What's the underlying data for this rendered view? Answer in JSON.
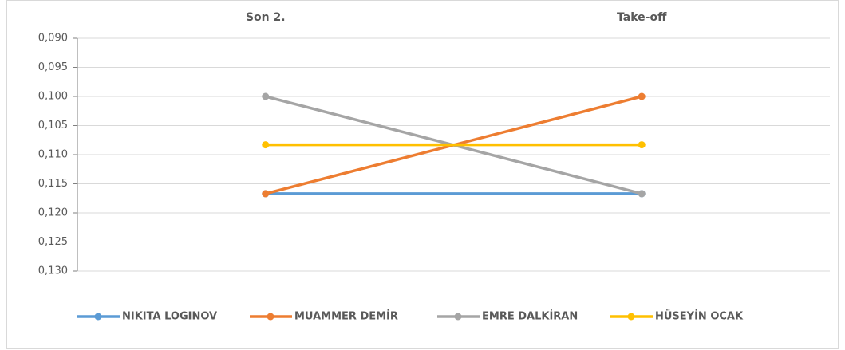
{
  "chart_data": {
    "type": "line",
    "categories": [
      "Son 2.",
      "Take-off"
    ],
    "series": [
      {
        "name": "NIKITA LOGINOV",
        "color": "#5b9bd5",
        "values": [
          0.1167,
          0.1167
        ]
      },
      {
        "name": "MUAMMER DEMİR",
        "color": "#ed7d31",
        "values": [
          0.1167,
          0.1
        ]
      },
      {
        "name": "EMRE DALKİRAN",
        "color": "#a5a5a5",
        "values": [
          0.1,
          0.1167
        ]
      },
      {
        "name": "HÜSEYİN OCAK",
        "color": "#ffc000",
        "values": [
          0.1083,
          0.1083
        ]
      }
    ],
    "ylim": [
      0.09,
      0.13
    ],
    "yreverse": true,
    "yticks": [
      {
        "value": 0.09,
        "label": "0,090"
      },
      {
        "value": 0.095,
        "label": "0,095"
      },
      {
        "value": 0.1,
        "label": "0,100"
      },
      {
        "value": 0.105,
        "label": "0,105"
      },
      {
        "value": 0.11,
        "label": "0,110"
      },
      {
        "value": 0.115,
        "label": "0,115"
      },
      {
        "value": 0.12,
        "label": "0,120"
      },
      {
        "value": 0.125,
        "label": "0,125"
      },
      {
        "value": 0.13,
        "label": "0,130"
      }
    ],
    "grid": true,
    "legend": "bottom"
  }
}
